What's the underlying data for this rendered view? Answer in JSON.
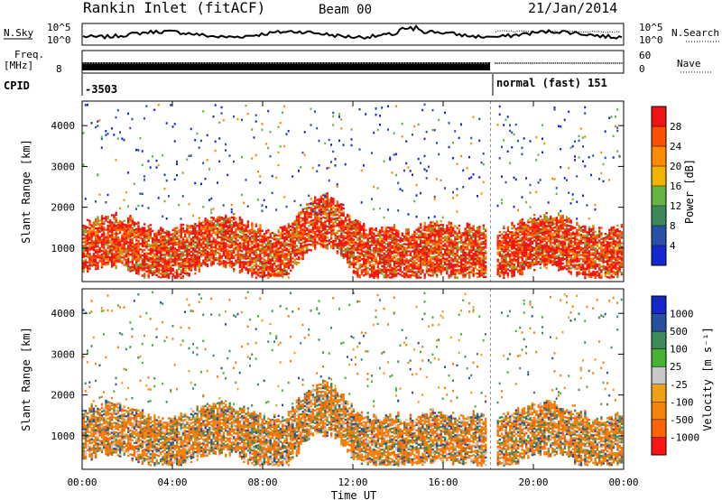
{
  "header": {
    "station": "Rankin Inlet (fitACF)",
    "beam": "Beam 00",
    "date": "21/Jan/2014"
  },
  "status_panels": {
    "nsky_label": "N.Sky",
    "nsky_ticks": [
      "10^5",
      "10^0"
    ],
    "nsearch_label": "N.Search",
    "nsearch_ticks": [
      "10^5",
      "10^0"
    ],
    "freq_label_1": "Freq.",
    "freq_label_2": "[MHz]",
    "freq_ticks": [
      "8"
    ],
    "nave_label": "Nave",
    "nave_ticks": [
      "60",
      "0"
    ],
    "cpid_label": "CPID",
    "cpid_segment_1": "-3503",
    "cpid_segment_2": "normal (fast) 151"
  },
  "colors": {
    "power_scale": [
      "#1428d2",
      "#2850a8",
      "#3c8a5a",
      "#64b446",
      "#f0b400",
      "#ff8c00",
      "#ff5000",
      "#f01414"
    ],
    "velocity_scale": [
      "#ff1414",
      "#ff6400",
      "#f5820a",
      "#f0a014",
      "#c8c8c8",
      "#46b432",
      "#3c8c5a",
      "#2850a0",
      "#1428c8"
    ]
  },
  "chart_data": [
    {
      "type": "heatmap",
      "name": "Power",
      "ylabel": "Slant Range [km]",
      "y_ticks": [
        "1000",
        "2000",
        "3000",
        "4000"
      ],
      "ylim": [
        180,
        4600
      ],
      "colorbar_label": "Power [dB]",
      "colorbar_ticks": [
        "4",
        "8",
        "12",
        "16",
        "20",
        "24",
        "28"
      ],
      "colorbar_range": [
        0,
        30
      ]
    },
    {
      "type": "heatmap",
      "name": "Velocity",
      "ylabel": "Slant Range [km]",
      "y_ticks": [
        "1000",
        "2000",
        "3000",
        "4000"
      ],
      "ylim": [
        180,
        4600
      ],
      "colorbar_label": "Velocity [m s⁻¹]",
      "colorbar_ticks": [
        "-1000",
        "-500",
        "-100",
        "-25",
        "25",
        "100",
        "500",
        "1000"
      ],
      "x_ticks": [
        "00:00",
        "04:00",
        "08:00",
        "12:00",
        "16:00",
        "20:00",
        "00:00"
      ],
      "xlabel": "Time UT",
      "xlim_hours": [
        0,
        24
      ]
    }
  ]
}
